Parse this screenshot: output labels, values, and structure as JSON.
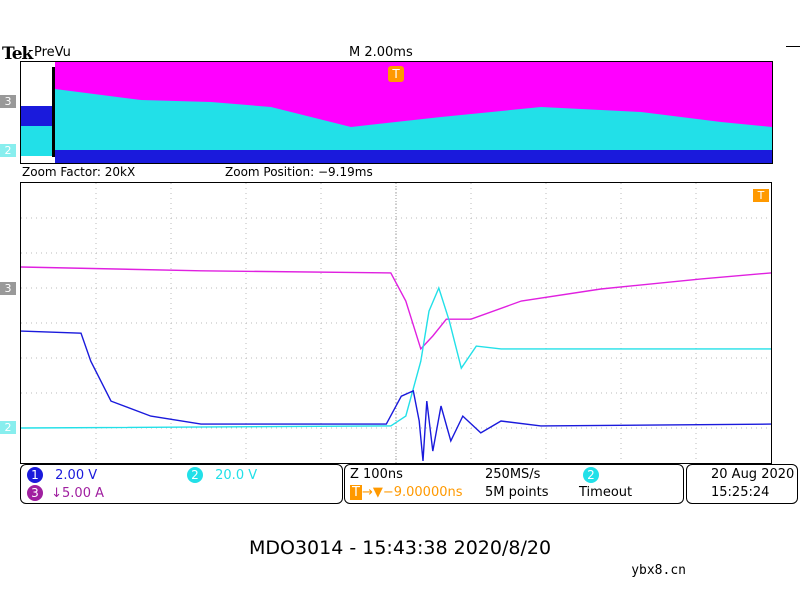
{
  "header": {
    "brand": "Tek",
    "mode": "PreVu",
    "timebase": "M 2.00ms",
    "trigger_marker": "T"
  },
  "zoom": {
    "factor": "Zoom Factor: 20kX",
    "position": "Zoom Position: −9.19ms"
  },
  "channels": [
    {
      "id": "1",
      "scale": "2.00 V",
      "color": "#1a1adc"
    },
    {
      "id": "2",
      "scale": "20.0 V",
      "color": "#22e0e8"
    },
    {
      "id": "3",
      "scale": "↓5.00 A",
      "color": "#a020a0"
    }
  ],
  "ground_markers": {
    "ch3": "3",
    "ch2": "2",
    "trigger_level": "T"
  },
  "acq": {
    "zoom_time": "Z 100ns",
    "trigger_pos_icon": "T",
    "trigger_pos": "→▼−9.00000ns",
    "sample_rate": "250MS/s",
    "record": "5M points",
    "trigger_source": "2",
    "trigger_mode": "Timeout"
  },
  "datetime": {
    "date": "20 Aug 2020",
    "time": "15:25:24"
  },
  "footer": "MDO3014 - 15:43:38   2020/8/20",
  "watermark": "ybx8.cn",
  "waveforms": {
    "ch3": [
      [
        0,
        2.4
      ],
      [
        2.4,
        2.51
      ],
      [
        4.93,
        2.57
      ],
      [
        5.13,
        3.37
      ],
      [
        5.33,
        4.74
      ],
      [
        5.49,
        4.37
      ],
      [
        5.67,
        3.89
      ],
      [
        6.0,
        3.89
      ],
      [
        6.67,
        3.37
      ],
      [
        7.73,
        3.03
      ],
      [
        9.07,
        2.74
      ],
      [
        10,
        2.57
      ]
    ],
    "ch2": [
      [
        0,
        7.0
      ],
      [
        4.93,
        6.94
      ],
      [
        5.13,
        6.66
      ],
      [
        5.33,
        5.09
      ],
      [
        5.44,
        3.66
      ],
      [
        5.57,
        3.0
      ],
      [
        5.71,
        3.94
      ],
      [
        5.87,
        5.29
      ],
      [
        6.07,
        4.66
      ],
      [
        6.4,
        4.74
      ],
      [
        10,
        4.74
      ]
    ],
    "ch1": [
      [
        0,
        4.23
      ],
      [
        0.8,
        4.29
      ],
      [
        0.93,
        5.09
      ],
      [
        1.2,
        6.23
      ],
      [
        1.73,
        6.66
      ],
      [
        2.4,
        6.89
      ],
      [
        4.87,
        6.89
      ],
      [
        5.07,
        6.09
      ],
      [
        5.23,
        5.94
      ],
      [
        5.31,
        6.8
      ],
      [
        5.36,
        7.94
      ],
      [
        5.41,
        6.23
      ],
      [
        5.49,
        7.66
      ],
      [
        5.6,
        6.37
      ],
      [
        5.73,
        7.37
      ],
      [
        5.89,
        6.66
      ],
      [
        6.13,
        7.14
      ],
      [
        6.4,
        6.8
      ],
      [
        6.93,
        6.94
      ],
      [
        10,
        6.89
      ]
    ]
  }
}
